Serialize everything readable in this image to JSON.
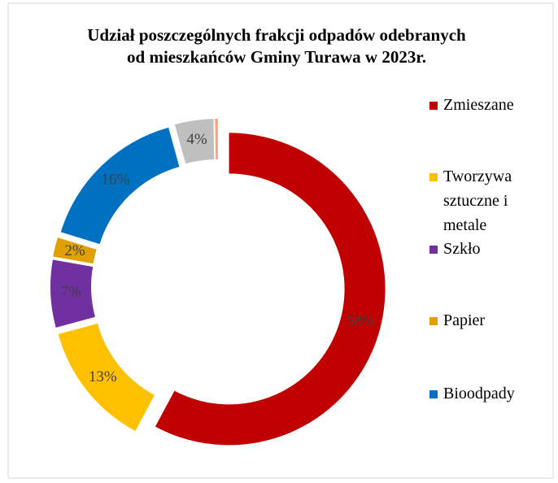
{
  "chart_data": {
    "type": "donut",
    "title": "Udział poszczególnych frakcji odpadów odebranych od mieszkańców Gminy Turawa w 2023r.",
    "categories": [
      "Zmieszane",
      "Tworzywa sztuczne i metale",
      "Szkło",
      "Papier",
      "Bioodpady",
      null,
      null
    ],
    "values": [
      58,
      13,
      7,
      2,
      16,
      4,
      0.3
    ],
    "value_labels": [
      "58%",
      "13%",
      "7%",
      "2%",
      "16%",
      "4%",
      null
    ],
    "colors": [
      "#c00000",
      "#ffc000",
      "#7030a0",
      "#e0a000",
      "#0070c0",
      "#bfbfbf",
      "#f4a582"
    ],
    "legend": "right"
  }
}
